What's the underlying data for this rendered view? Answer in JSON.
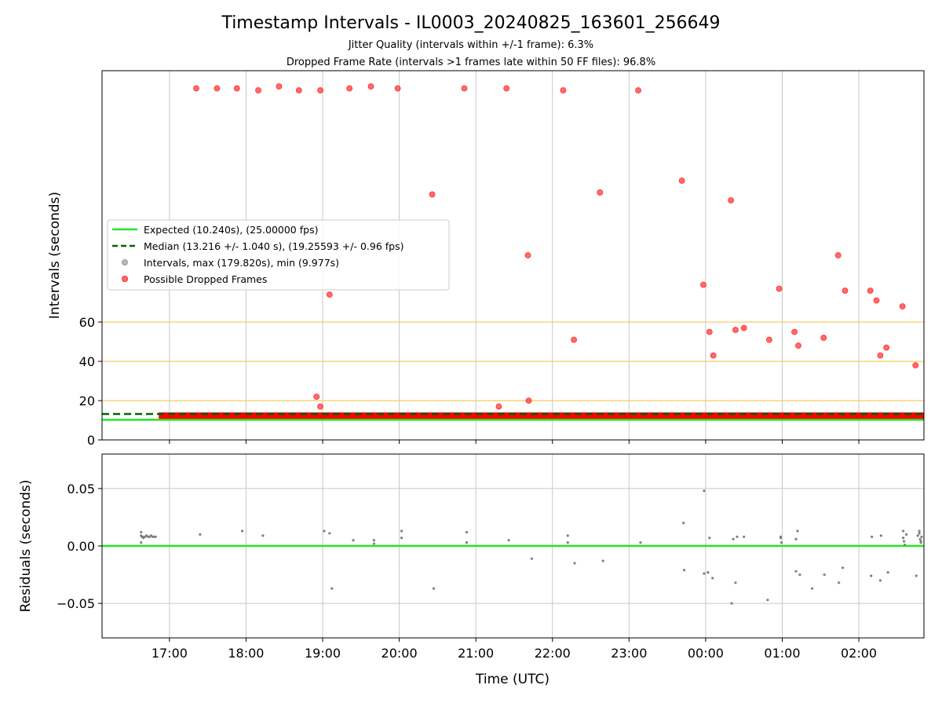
{
  "chart_data": [
    {
      "type": "scatter",
      "title": "Timestamp Intervals - IL0003_20240825_163601_256649",
      "subtitle_lines": [
        "Jitter Quality (intervals within +/-1 frame): 6.3%",
        "Dropped Frame Rate (intervals >1 frames late within 50 FF files): 96.8%"
      ],
      "xlabel": "",
      "ylabel": "Intervals (seconds)",
      "y_ticks": [
        0,
        20,
        40,
        60
      ],
      "ylim": [
        0,
        188
      ],
      "x_tick_labels": [
        "17:00",
        "18:00",
        "19:00",
        "20:00",
        "21:00",
        "22:00",
        "23:00",
        "00:00",
        "01:00",
        "02:00"
      ],
      "x_tick_hours": [
        17,
        18,
        19,
        20,
        21,
        22,
        23,
        24,
        25,
        26
      ],
      "xlim_hours": [
        16.12,
        26.85
      ],
      "grid": true,
      "reference_lines": [
        20,
        40,
        60
      ],
      "expected_interval": 10.24,
      "median_interval": 13.216,
      "legend_position": "center-left",
      "legend": [
        {
          "label": "Expected (10.240s), (25.00000 fps)",
          "style": "line",
          "color": "#22e822"
        },
        {
          "label": "Median (13.216 +/- 1.040 s), (19.25593 +/- 0.96 fps)",
          "style": "dashed",
          "color": "#006400"
        },
        {
          "label": "Intervals, max (179.820s), min (9.977s)",
          "style": "marker",
          "color": "#9a9a9a"
        },
        {
          "label": "Possible Dropped Frames",
          "style": "marker",
          "color": "#ff2b2b"
        }
      ],
      "series": [
        {
          "name": "Possible Dropped Frames",
          "x": [
            17.35,
            17.62,
            17.88,
            18.16,
            18.43,
            18.69,
            18.97,
            19.35,
            19.63,
            19.98,
            20.85,
            21.4,
            22.14,
            23.12,
            20.43,
            22.62,
            23.69,
            21.68,
            24.33,
            24.96,
            25.73,
            23.97,
            25.82,
            26.15,
            26.23,
            26.57,
            19.09,
            24.05,
            24.39,
            24.5,
            24.83,
            25.16,
            25.54,
            25.21,
            24.1,
            26.28,
            26.36,
            26.74,
            22.28,
            18.92,
            18.97,
            21.3,
            21.69
          ],
          "y": [
            179,
            179,
            179,
            178,
            180,
            178,
            178,
            179,
            180,
            179,
            179,
            179,
            178,
            178,
            125,
            126,
            132,
            94,
            122,
            77,
            94,
            79,
            76,
            76,
            71,
            68,
            74,
            55,
            56,
            57,
            51,
            55,
            52,
            48,
            43,
            43,
            47,
            38,
            51,
            22,
            17,
            17,
            20
          ],
          "marker": "circle",
          "color": "#ff2b2b"
        },
        {
          "name": "Intervals, max (179.820s), min (9.977s)",
          "type": "dense_band",
          "x_range": [
            16.6,
            26.85
          ],
          "y_band": [
            10.0,
            14.0
          ],
          "color": "#ff0000"
        }
      ]
    },
    {
      "type": "scatter",
      "xlabel": "Time (UTC)",
      "ylabel": "Residuals (seconds)",
      "y_ticks": [
        -0.05,
        0.0,
        0.05
      ],
      "y_tick_labels": [
        "−0.05",
        "0.00",
        "0.05"
      ],
      "ylim": [
        -0.08,
        0.08
      ],
      "x_tick_labels": [
        "17:00",
        "18:00",
        "19:00",
        "20:00",
        "21:00",
        "22:00",
        "23:00",
        "00:00",
        "01:00",
        "02:00"
      ],
      "x_tick_hours": [
        17,
        18,
        19,
        20,
        21,
        22,
        23,
        24,
        25,
        26
      ],
      "xlim_hours": [
        16.12,
        26.85
      ],
      "grid": true,
      "zero_line_color": "#22e822",
      "series": [
        {
          "name": "Residuals",
          "x": [
            16.63,
            16.63,
            16.63,
            16.64,
            16.65,
            16.66,
            16.68,
            16.7,
            16.72,
            16.74,
            16.76,
            16.78,
            16.8,
            16.82,
            17.4,
            17.95,
            18.22,
            19.02,
            19.09,
            19.12,
            19.4,
            19.67,
            19.67,
            20.03,
            20.03,
            20.45,
            20.88,
            20.88,
            21.43,
            21.73,
            22.2,
            22.2,
            22.29,
            22.66,
            23.15,
            23.71,
            23.72,
            23.98,
            23.98,
            24.03,
            24.05,
            24.09,
            24.34,
            24.36,
            24.39,
            24.41,
            24.5,
            24.81,
            24.98,
            24.98,
            24.99,
            25.18,
            25.18,
            25.2,
            25.23,
            25.39,
            25.55,
            25.74,
            25.79,
            26.16,
            26.17,
            26.28,
            26.29,
            26.38,
            26.58,
            26.58,
            26.59,
            26.6,
            26.62,
            26.75,
            26.77,
            26.79,
            26.8,
            26.81,
            26.82,
            26.79,
            26.81
          ],
          "y": [
            0.012,
            0.003,
            0.009,
            0.008,
            0.008,
            0.007,
            0.008,
            0.009,
            0.008,
            0.008,
            0.009,
            0.008,
            0.008,
            0.008,
            0.01,
            0.013,
            0.009,
            0.013,
            0.011,
            -0.037,
            0.005,
            0.005,
            0.002,
            0.013,
            0.007,
            -0.037,
            0.012,
            0.003,
            0.005,
            -0.011,
            0.009,
            0.003,
            -0.015,
            -0.013,
            0.003,
            0.02,
            -0.021,
            0.048,
            -0.024,
            -0.023,
            0.007,
            -0.028,
            -0.05,
            0.006,
            -0.032,
            0.008,
            0.008,
            -0.047,
            0.008,
            0.007,
            0.003,
            0.006,
            -0.022,
            0.013,
            -0.025,
            -0.037,
            -0.025,
            -0.032,
            -0.019,
            -0.026,
            0.008,
            -0.03,
            0.009,
            -0.023,
            0.013,
            0.007,
            0.004,
            0.001,
            0.01,
            -0.026,
            0.009,
            0.013,
            0.006,
            0.003,
            0.008,
            0.011,
            0.004
          ],
          "marker": "circle",
          "color": "#808080"
        }
      ]
    }
  ]
}
